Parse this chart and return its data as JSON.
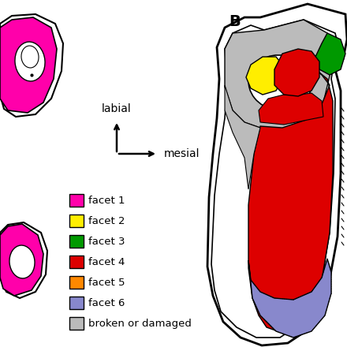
{
  "facet_colors": {
    "facet1": "#FF00AA",
    "facet2": "#FFEE00",
    "facet3": "#009900",
    "facet4": "#DD0000",
    "facet5": "#FF8800",
    "facet6": "#8888CC",
    "broken": "#BBBBBB"
  },
  "legend_labels": [
    "facet 1",
    "facet 2",
    "facet 3",
    "facet 4",
    "facet 5",
    "facet 6",
    "broken or damaged"
  ],
  "compass_label_up": "labial",
  "compass_label_right": "mesial",
  "label_B": "B",
  "bg_color": "#FFFFFF",
  "outline_color": "#000000"
}
